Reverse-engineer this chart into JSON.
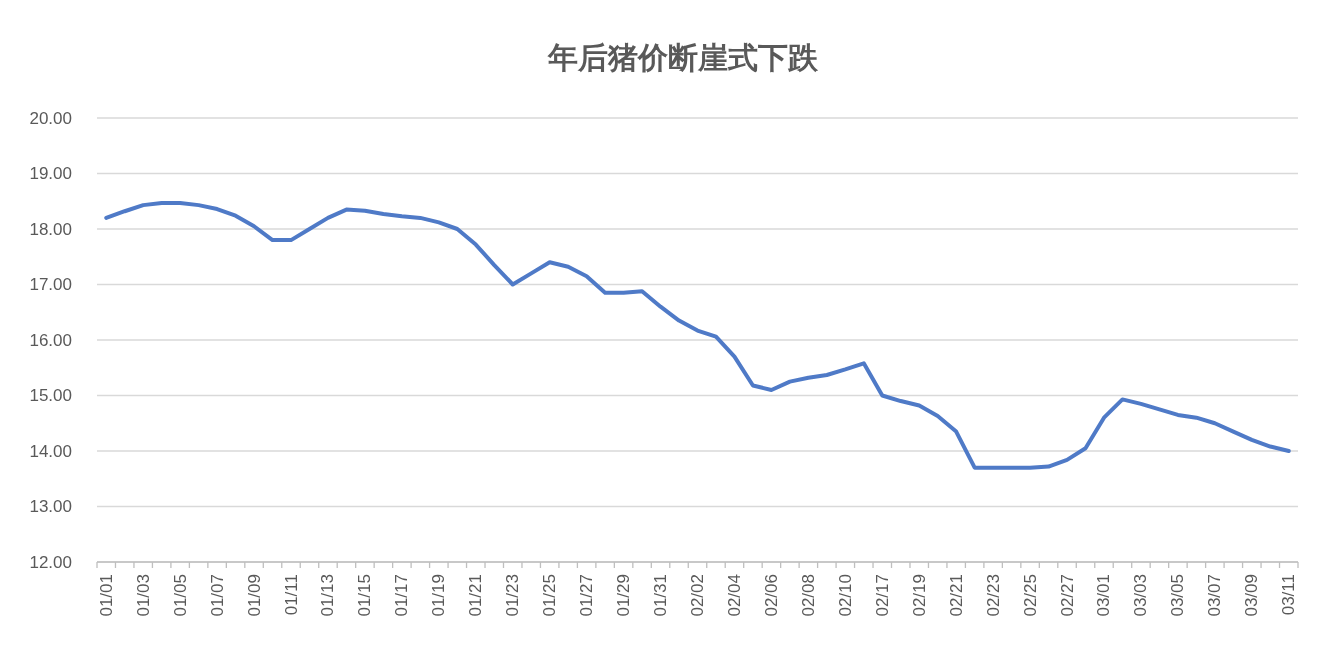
{
  "chart_data": {
    "type": "line",
    "title": "年后猪价断崖式下跌",
    "categories": [
      "01/01",
      null,
      "01/03",
      null,
      "01/05",
      null,
      "01/07",
      null,
      "01/09",
      null,
      "01/11",
      null,
      "01/13",
      null,
      "01/15",
      null,
      "01/17",
      null,
      "01/19",
      null,
      "01/21",
      null,
      "01/23",
      null,
      "01/25",
      null,
      "01/27",
      null,
      "01/29",
      null,
      "01/31",
      null,
      "02/02",
      null,
      "02/04",
      null,
      "02/06",
      null,
      "02/08",
      null,
      "02/10",
      null,
      "02/17",
      null,
      "02/19",
      null,
      "02/21",
      null,
      "02/23",
      null,
      "02/25",
      null,
      "02/27",
      null,
      "03/01",
      null,
      "03/03",
      null,
      "03/05",
      null,
      "03/07",
      null,
      "03/09",
      null,
      "03/11"
    ],
    "series": [
      {
        "color": "#4f7ac7",
        "values": [
          18.2,
          18.32,
          18.43,
          18.47,
          18.47,
          18.43,
          18.36,
          18.24,
          18.05,
          17.8,
          17.8,
          18.0,
          18.2,
          18.35,
          18.33,
          18.27,
          18.23,
          18.2,
          18.12,
          18.0,
          17.72,
          17.35,
          17.0,
          17.2,
          17.4,
          17.32,
          17.15,
          16.85,
          16.85,
          16.88,
          16.6,
          16.35,
          16.17,
          16.06,
          15.7,
          15.18,
          15.1,
          15.25,
          15.32,
          15.37,
          15.47,
          15.58,
          15.0,
          14.9,
          14.82,
          14.63,
          14.35,
          13.7,
          13.7,
          13.7,
          13.7,
          13.72,
          13.84,
          14.05,
          14.6,
          14.93,
          14.85,
          14.75,
          14.65,
          14.6,
          14.5,
          14.35,
          14.2,
          14.08,
          14.0
        ]
      }
    ],
    "ylim": [
      12,
      20
    ],
    "yticks": [
      {
        "value": 12,
        "label": "12.00"
      },
      {
        "value": 13,
        "label": "13.00"
      },
      {
        "value": 14,
        "label": "14.00"
      },
      {
        "value": 15,
        "label": "15.00"
      },
      {
        "value": 16,
        "label": "16.00"
      },
      {
        "value": 17,
        "label": "17.00"
      },
      {
        "value": 18,
        "label": "18.00"
      },
      {
        "value": 19,
        "label": "19.00"
      },
      {
        "value": 20,
        "label": "20.00"
      }
    ],
    "grid": "y",
    "marker": "none",
    "line_style": "solid"
  }
}
